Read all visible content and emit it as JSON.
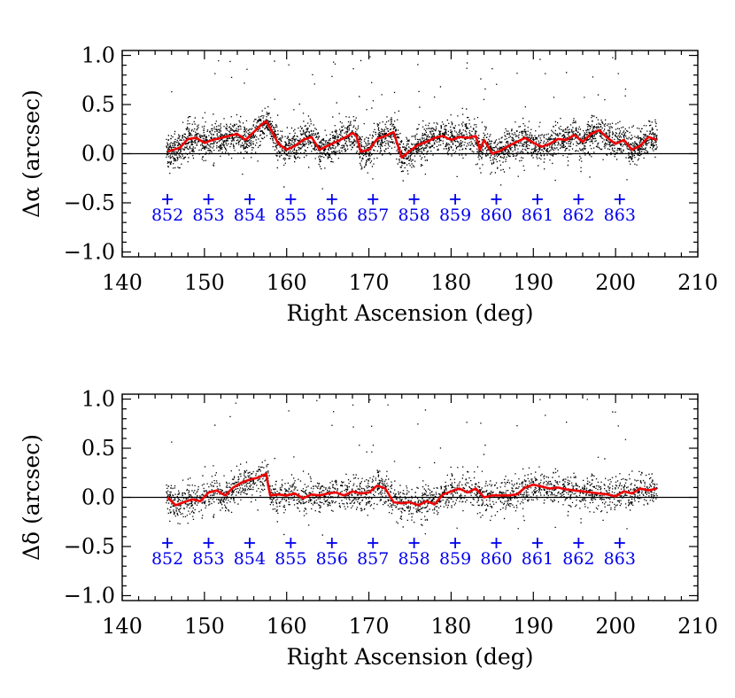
{
  "chart_data": [
    {
      "type": "scatter",
      "panel": "top",
      "xlabel": "Right Ascension (deg)",
      "ylabel": "Δα (arcsec)",
      "xlim": [
        140,
        210
      ],
      "ylim": [
        -1.05,
        1.05
      ],
      "xticks": [
        140,
        150,
        160,
        170,
        180,
        190,
        200,
        210
      ],
      "yticks": [
        1.0,
        0.5,
        0.0,
        -0.5,
        -1.0
      ],
      "ytick_labels": [
        "1.0",
        "0.5",
        "0.0",
        "−0.5",
        "−1.0"
      ],
      "zero_line": 0.0,
      "scatter_range_x": [
        145.3,
        205
      ],
      "series": [
        {
          "name": "running mean",
          "color": "#ee0000",
          "x": [
            145.5,
            147,
            148,
            149,
            150,
            151,
            152,
            153,
            154,
            155,
            156,
            157,
            157.5,
            158,
            159,
            160,
            161,
            162,
            163,
            164,
            165,
            166,
            167,
            168,
            168.5,
            169,
            170,
            171,
            172,
            173,
            174,
            175,
            176,
            177,
            178,
            179,
            180,
            181,
            182,
            183,
            183.5,
            184,
            185,
            186,
            187,
            188,
            189,
            190,
            191,
            192,
            193,
            194,
            195,
            196,
            197,
            198,
            199,
            200,
            201,
            202,
            203,
            204,
            205
          ],
          "y": [
            0.02,
            0.06,
            0.15,
            0.16,
            0.11,
            0.14,
            0.16,
            0.18,
            0.2,
            0.14,
            0.22,
            0.3,
            0.33,
            0.26,
            0.1,
            0.04,
            0.08,
            0.14,
            0.17,
            0.04,
            0.08,
            0.12,
            0.16,
            0.21,
            0.18,
            0.02,
            0.04,
            0.15,
            0.18,
            0.22,
            -0.04,
            0.03,
            0.09,
            0.12,
            0.16,
            0.18,
            0.14,
            0.17,
            0.16,
            0.18,
            0.04,
            0.14,
            0.0,
            0.03,
            0.08,
            0.12,
            0.16,
            0.11,
            0.07,
            0.1,
            0.15,
            0.14,
            0.19,
            0.12,
            0.2,
            0.24,
            0.16,
            0.1,
            0.14,
            0.04,
            0.08,
            0.17,
            0.14
          ]
        }
      ],
      "markers": [
        {
          "label": "852",
          "x": 145.5,
          "y": -0.5
        },
        {
          "label": "853",
          "x": 150.5,
          "y": -0.5
        },
        {
          "label": "854",
          "x": 155.5,
          "y": -0.5
        },
        {
          "label": "855",
          "x": 160.5,
          "y": -0.5
        },
        {
          "label": "856",
          "x": 165.5,
          "y": -0.5
        },
        {
          "label": "857",
          "x": 170.5,
          "y": -0.5
        },
        {
          "label": "858",
          "x": 175.5,
          "y": -0.5
        },
        {
          "label": "859",
          "x": 180.5,
          "y": -0.5
        },
        {
          "label": "860",
          "x": 185.5,
          "y": -0.5
        },
        {
          "label": "861",
          "x": 190.5,
          "y": -0.5
        },
        {
          "label": "862",
          "x": 195.5,
          "y": -0.5
        },
        {
          "label": "863",
          "x": 200.5,
          "y": -0.5
        }
      ],
      "colors": {
        "points": "#000000",
        "markers": "#0000ee",
        "mean": "#ee0000"
      }
    },
    {
      "type": "scatter",
      "panel": "bottom",
      "xlabel": "Right Ascension (deg)",
      "ylabel": "Δδ (arcsec)",
      "xlim": [
        140,
        210
      ],
      "ylim": [
        -1.05,
        1.05
      ],
      "xticks": [
        140,
        150,
        160,
        170,
        180,
        190,
        200,
        210
      ],
      "yticks": [
        1.0,
        0.5,
        0.0,
        -0.5,
        -1.0
      ],
      "ytick_labels": [
        "1.0",
        "0.5",
        "0.0",
        "−0.5",
        "−1.0"
      ],
      "zero_line": 0.0,
      "scatter_range_x": [
        145.3,
        205
      ],
      "series": [
        {
          "name": "running mean",
          "color": "#ee0000",
          "x": [
            145.5,
            146.5,
            147.5,
            148.5,
            149.5,
            150.5,
            151.5,
            152.5,
            153.5,
            154.5,
            155.5,
            156.5,
            157.5,
            158,
            159,
            160,
            161,
            162,
            163,
            164,
            165,
            166,
            167,
            168,
            169,
            170,
            171,
            172,
            173,
            174,
            175,
            176,
            177,
            178,
            179,
            180,
            181,
            182,
            183,
            184,
            185,
            186,
            187,
            188,
            189,
            190,
            191,
            192,
            193,
            194,
            195,
            196,
            197,
            198,
            199,
            200,
            201,
            202,
            203,
            204,
            205
          ],
          "y": [
            0.0,
            -0.08,
            -0.05,
            -0.02,
            -0.04,
            0.05,
            0.07,
            0.02,
            0.1,
            0.15,
            0.18,
            0.2,
            0.24,
            0.02,
            0.03,
            0.02,
            0.04,
            -0.01,
            0.03,
            0.02,
            0.04,
            0.05,
            0.02,
            0.06,
            0.04,
            0.05,
            0.12,
            0.09,
            -0.05,
            -0.06,
            -0.05,
            -0.08,
            -0.04,
            -0.07,
            0.03,
            0.06,
            0.09,
            0.05,
            0.09,
            0.0,
            0.02,
            0.02,
            0.02,
            0.03,
            0.1,
            0.13,
            0.11,
            0.09,
            0.1,
            0.08,
            0.07,
            0.06,
            0.05,
            0.04,
            0.03,
            0.01,
            0.06,
            0.04,
            0.09,
            0.07,
            0.09
          ]
        }
      ],
      "markers": [
        {
          "label": "852",
          "x": 145.5,
          "y": -0.5
        },
        {
          "label": "853",
          "x": 150.5,
          "y": -0.5
        },
        {
          "label": "854",
          "x": 155.5,
          "y": -0.5
        },
        {
          "label": "855",
          "x": 160.5,
          "y": -0.5
        },
        {
          "label": "856",
          "x": 165.5,
          "y": -0.5
        },
        {
          "label": "857",
          "x": 170.5,
          "y": -0.5
        },
        {
          "label": "858",
          "x": 175.5,
          "y": -0.5
        },
        {
          "label": "859",
          "x": 180.5,
          "y": -0.5
        },
        {
          "label": "860",
          "x": 185.5,
          "y": -0.5
        },
        {
          "label": "861",
          "x": 190.5,
          "y": -0.5
        },
        {
          "label": "862",
          "x": 195.5,
          "y": -0.5
        },
        {
          "label": "863",
          "x": 200.5,
          "y": -0.5
        }
      ],
      "colors": {
        "points": "#000000",
        "markers": "#0000ee",
        "mean": "#ee0000"
      }
    }
  ]
}
